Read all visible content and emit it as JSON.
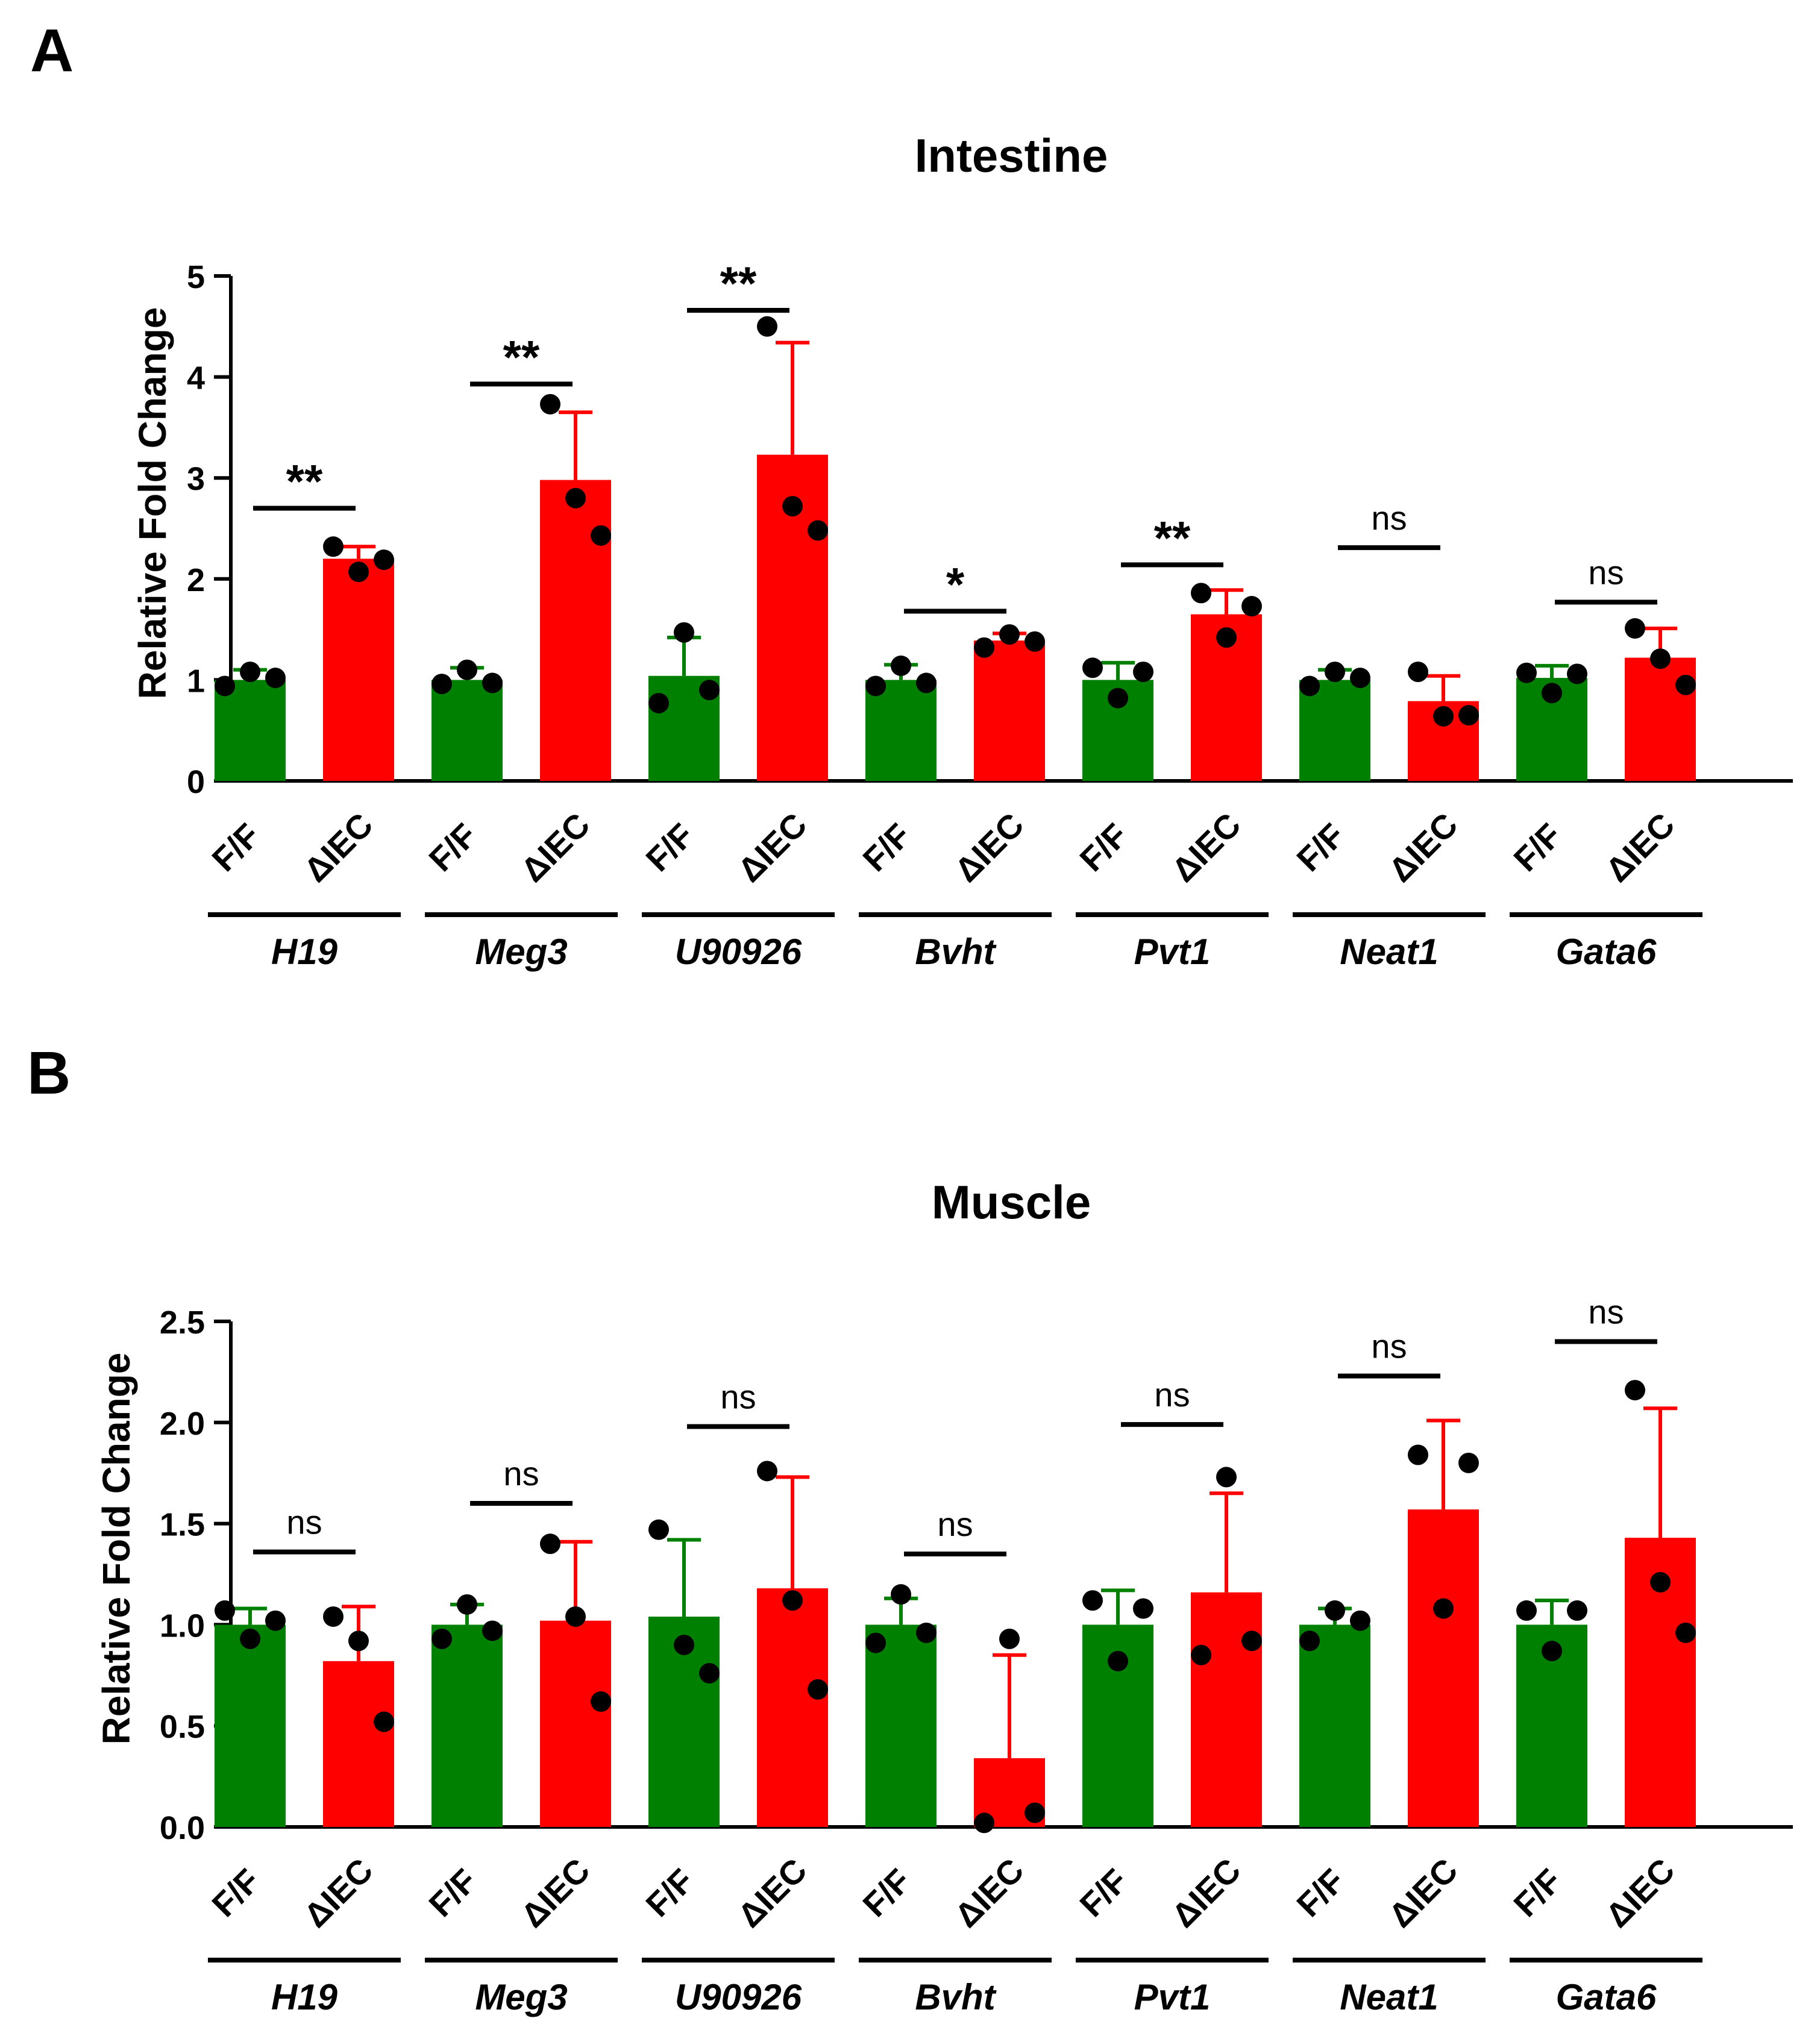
{
  "chart_data": [
    {
      "panel_label": "A",
      "type": "bar",
      "title": "Intestine",
      "ylabel": "Relative Fold Change",
      "xlabel": "",
      "ylim": [
        0,
        5
      ],
      "yticks": [
        "0",
        "1",
        "2",
        "3",
        "4",
        "5"
      ],
      "ytick_values": [
        0,
        1,
        2,
        3,
        4,
        5
      ],
      "genes": [
        "H19",
        "Meg3",
        "U90926",
        "Bvht",
        "Pvt1",
        "Neat1",
        "Gata6"
      ],
      "group_labels": [
        "F/F",
        "ΔIEC"
      ],
      "series": [
        {
          "name": "F/F",
          "color": "#008000",
          "values": [
            1.0,
            1.0,
            1.04,
            1.0,
            1.0,
            1.0,
            1.02
          ],
          "error": [
            0.1,
            0.12,
            0.38,
            0.15,
            0.17,
            0.1,
            0.12
          ],
          "points": [
            [
              0.94,
              1.08,
              1.02
            ],
            [
              0.96,
              1.1,
              0.97
            ],
            [
              0.77,
              1.47,
              0.9
            ],
            [
              0.94,
              1.14,
              0.97
            ],
            [
              1.12,
              0.82,
              1.08
            ],
            [
              0.94,
              1.08,
              1.02
            ],
            [
              1.07,
              0.87,
              1.06
            ]
          ]
        },
        {
          "name": "ΔIEC",
          "color": "#ff0000",
          "values": [
            2.2,
            2.98,
            3.23,
            1.39,
            1.65,
            0.79,
            1.22
          ],
          "error": [
            0.12,
            0.67,
            1.11,
            0.07,
            0.24,
            0.25,
            0.29
          ],
          "points": [
            [
              2.32,
              2.07,
              2.19
            ],
            [
              3.73,
              2.8,
              2.43
            ],
            [
              4.5,
              2.72,
              2.48
            ],
            [
              1.32,
              1.45,
              1.38
            ],
            [
              1.86,
              1.42,
              1.73
            ],
            [
              1.08,
              0.64,
              0.65
            ],
            [
              1.51,
              1.21,
              0.95
            ]
          ]
        }
      ],
      "significance": [
        "**",
        "**",
        "**",
        "*",
        "**",
        "ns",
        "ns"
      ],
      "significance_y": [
        2.7,
        3.93,
        4.66,
        1.68,
        2.14,
        2.31,
        1.77
      ]
    },
    {
      "panel_label": "B",
      "type": "bar",
      "title": "Muscle",
      "ylabel": "Relative Fold Change",
      "xlabel": "",
      "ylim": [
        0,
        2.5
      ],
      "yticks": [
        "0.0",
        "0.5",
        "1.0",
        "1.5",
        "2.0",
        "2.5"
      ],
      "ytick_values": [
        0,
        0.5,
        1.0,
        1.5,
        2.0,
        2.5
      ],
      "genes": [
        "H19",
        "Meg3",
        "U90926",
        "Bvht",
        "Pvt1",
        "Neat1",
        "Gata6"
      ],
      "group_labels": [
        "F/F",
        "ΔIEC"
      ],
      "series": [
        {
          "name": "F/F",
          "color": "#008000",
          "values": [
            1.0,
            1.0,
            1.04,
            1.0,
            1.0,
            1.0,
            1.0
          ],
          "error": [
            0.08,
            0.1,
            0.38,
            0.13,
            0.17,
            0.08,
            0.12
          ],
          "points": [
            [
              1.07,
              0.93,
              1.02
            ],
            [
              0.93,
              1.1,
              0.97
            ],
            [
              1.47,
              0.9,
              0.76
            ],
            [
              0.91,
              1.15,
              0.96
            ],
            [
              1.12,
              0.82,
              1.08
            ],
            [
              0.92,
              1.07,
              1.02
            ],
            [
              1.07,
              0.87,
              1.07
            ]
          ]
        },
        {
          "name": "ΔIEC",
          "color": "#ff0000",
          "values": [
            0.82,
            1.02,
            1.18,
            0.34,
            1.16,
            1.57,
            1.43
          ],
          "error": [
            0.27,
            0.39,
            0.55,
            0.51,
            0.49,
            0.44,
            0.64
          ],
          "points": [
            [
              1.04,
              0.92,
              0.52
            ],
            [
              1.4,
              1.04,
              0.62
            ],
            [
              1.76,
              1.12,
              0.68
            ],
            [
              0.02,
              0.93,
              0.07
            ],
            [
              0.85,
              1.73,
              0.92
            ],
            [
              1.84,
              1.08,
              1.8
            ],
            [
              2.16,
              1.21,
              0.96
            ]
          ]
        }
      ],
      "significance": [
        "ns",
        "ns",
        "ns",
        "ns",
        "ns",
        "ns",
        "ns"
      ],
      "significance_y": [
        1.36,
        1.6,
        1.98,
        1.35,
        1.99,
        2.23,
        2.4
      ]
    }
  ]
}
